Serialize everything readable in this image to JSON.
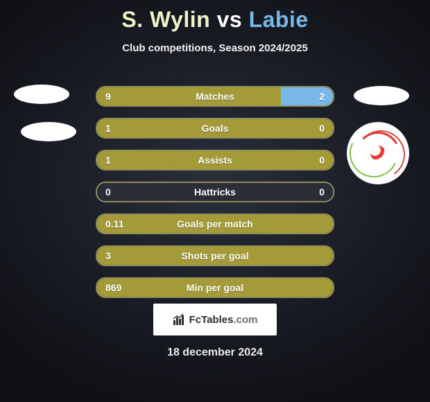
{
  "title": {
    "player1": "S. Wylin",
    "vs": "vs",
    "player2": "Labie"
  },
  "subtitle": "Club competitions, Season 2024/2025",
  "colors": {
    "player1_bar": "#a49a38",
    "player2_bar": "#78b7e9",
    "neutral_bar": "#a49a38",
    "empty_bar": "#2a2e38",
    "bar_border": "#8f8d5a",
    "title_p1": "#eff2c8",
    "title_p2": "#78b7e9"
  },
  "bars": [
    {
      "label": "Matches",
      "left_val": "9",
      "right_val": "2",
      "left_pct": 78,
      "right_pct": 22,
      "left_color": "#a49a38",
      "right_color": "#78b7e9"
    },
    {
      "label": "Goals",
      "left_val": "1",
      "right_val": "0",
      "left_pct": 100,
      "right_pct": 0,
      "left_color": "#a49a38",
      "right_color": "#78b7e9"
    },
    {
      "label": "Assists",
      "left_val": "1",
      "right_val": "0",
      "left_pct": 100,
      "right_pct": 0,
      "left_color": "#a49a38",
      "right_color": "#78b7e9"
    },
    {
      "label": "Hattricks",
      "left_val": "0",
      "right_val": "0",
      "left_pct": 0,
      "right_pct": 0,
      "left_color": "#a49a38",
      "right_color": "#78b7e9"
    },
    {
      "label": "Goals per match",
      "left_val": "0.11",
      "right_val": "",
      "left_pct": 100,
      "right_pct": 0,
      "left_color": "#a49a38",
      "right_color": "#78b7e9"
    },
    {
      "label": "Shots per goal",
      "left_val": "3",
      "right_val": "",
      "left_pct": 100,
      "right_pct": 0,
      "left_color": "#a49a38",
      "right_color": "#78b7e9"
    },
    {
      "label": "Min per goal",
      "left_val": "869",
      "right_val": "",
      "left_pct": 100,
      "right_pct": 0,
      "left_color": "#a49a38",
      "right_color": "#78b7e9"
    }
  ],
  "brand": {
    "text_fc": "FcTables",
    "text_dom": ".com"
  },
  "date": "18 december 2024"
}
